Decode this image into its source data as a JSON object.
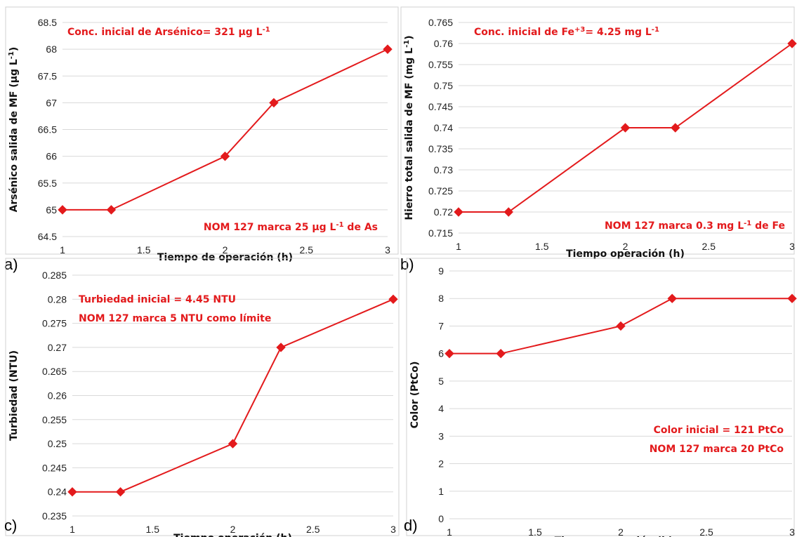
{
  "chart_data": [
    {
      "type": "line",
      "panel_label": "a)",
      "x": [
        1,
        1.3,
        2,
        2.3,
        3
      ],
      "series": [
        {
          "values": [
            65,
            65,
            66,
            67,
            68
          ],
          "color": "#e31a1c"
        }
      ],
      "xlabel": "Tiempo de operación (h)",
      "ylabel": "Arsénico salida de MF (μg L⁻¹)",
      "xlim": [
        1,
        3
      ],
      "ylim": [
        64.5,
        68.5
      ],
      "xticks": [
        1,
        1.5,
        2,
        2.5,
        3
      ],
      "xtick_labels": [
        "1",
        "1.5",
        "2",
        "2.5",
        "3"
      ],
      "yticks": [
        64.5,
        65,
        65.5,
        66,
        66.5,
        67,
        67.5,
        68,
        68.5
      ],
      "ytick_labels": [
        "64.5",
        "65",
        "65.5",
        "66",
        "66.5",
        "67",
        "67.5",
        "68",
        "68.5"
      ],
      "grid": true,
      "annotations": [
        {
          "text": "Conc. inicial de Arsénico= 321 μg L⁻¹",
          "position": "top-left",
          "color": "#e31a1c"
        },
        {
          "text": "NOM 127 marca 25 μg L⁻¹ de As",
          "position": "bottom-right",
          "color": "#e31a1c"
        }
      ]
    },
    {
      "type": "line",
      "panel_label": "b)",
      "x": [
        1,
        1.3,
        2,
        2.3,
        3
      ],
      "series": [
        {
          "values": [
            0.72,
            0.72,
            0.74,
            0.74,
            0.76
          ],
          "color": "#e31a1c"
        }
      ],
      "xlabel": "Tiempo operación (h)",
      "ylabel": "Hierro total salida de MF (mg L⁻¹)",
      "xlim": [
        1,
        3
      ],
      "ylim": [
        0.715,
        0.765
      ],
      "xticks": [
        1,
        1.5,
        2,
        2.5,
        3
      ],
      "xtick_labels": [
        "1",
        "1.5",
        "2",
        "2.5",
        "3"
      ],
      "yticks": [
        0.715,
        0.72,
        0.725,
        0.73,
        0.735,
        0.74,
        0.745,
        0.75,
        0.755,
        0.76,
        0.765
      ],
      "ytick_labels": [
        "0.715",
        "0.72",
        "0.725",
        "0.73",
        "0.735",
        "0.74",
        "0.745",
        "0.75",
        "0.755",
        "0.76",
        "0.765"
      ],
      "grid": true,
      "annotations": [
        {
          "text": "Conc. inicial de Fe⁺³= 4.25 mg L⁻¹",
          "position": "top-left",
          "color": "#e31a1c"
        },
        {
          "text": "NOM 127 marca 0.3 mg L⁻¹ de Fe",
          "position": "bottom-right",
          "color": "#e31a1c"
        }
      ]
    },
    {
      "type": "line",
      "panel_label": "c)",
      "x": [
        1,
        1.3,
        2,
        2.3,
        3
      ],
      "series": [
        {
          "values": [
            0.24,
            0.24,
            0.25,
            0.27,
            0.28
          ],
          "color": "#e31a1c"
        }
      ],
      "xlabel": "Tiempo operación (h)",
      "ylabel": "Turbiedad (NTU)",
      "xlim": [
        1,
        3
      ],
      "ylim": [
        0.235,
        0.285
      ],
      "xticks": [
        1,
        1.5,
        2,
        2.5,
        3
      ],
      "xtick_labels": [
        "1",
        "1.5",
        "2",
        "2.5",
        "3"
      ],
      "yticks": [
        0.235,
        0.24,
        0.245,
        0.25,
        0.255,
        0.26,
        0.265,
        0.27,
        0.275,
        0.28,
        0.285
      ],
      "ytick_labels": [
        "0.235",
        "0.24",
        "0.245",
        "0.25",
        "0.255",
        "0.26",
        "0.265",
        "0.27",
        "0.275",
        "0.28",
        "0.285"
      ],
      "grid": true,
      "annotations": [
        {
          "text": "Turbiedad inicial = 4.45 NTU",
          "position": "top-left",
          "color": "#e31a1c"
        },
        {
          "text": "NOM 127 marca 5 NTU como límite",
          "position": "top-left",
          "color": "#e31a1c"
        }
      ]
    },
    {
      "type": "line",
      "panel_label": "d)",
      "x": [
        1,
        1.3,
        2,
        2.3,
        3
      ],
      "series": [
        {
          "values": [
            6,
            6,
            7,
            8,
            8
          ],
          "color": "#e31a1c"
        }
      ],
      "xlabel": "Tiempo operación (h)",
      "ylabel": "Color  (PtCo)",
      "xlim": [
        1,
        3
      ],
      "ylim": [
        0,
        9
      ],
      "xticks": [
        1,
        1.5,
        2,
        2.5,
        3
      ],
      "xtick_labels": [
        "1",
        "1.5",
        "2",
        "2.5",
        "3"
      ],
      "yticks": [
        0,
        1,
        2,
        3,
        4,
        5,
        6,
        7,
        8,
        9
      ],
      "ytick_labels": [
        "0",
        "1",
        "2",
        "3",
        "4",
        "5",
        "6",
        "7",
        "8",
        "9"
      ],
      "grid": true,
      "annotations": [
        {
          "text": "Color inicial = 121 PtCo",
          "position": "bottom-right",
          "color": "#e31a1c"
        },
        {
          "text": "NOM 127 marca 20 PtCo",
          "position": "bottom-right",
          "color": "#e31a1c"
        }
      ]
    }
  ]
}
